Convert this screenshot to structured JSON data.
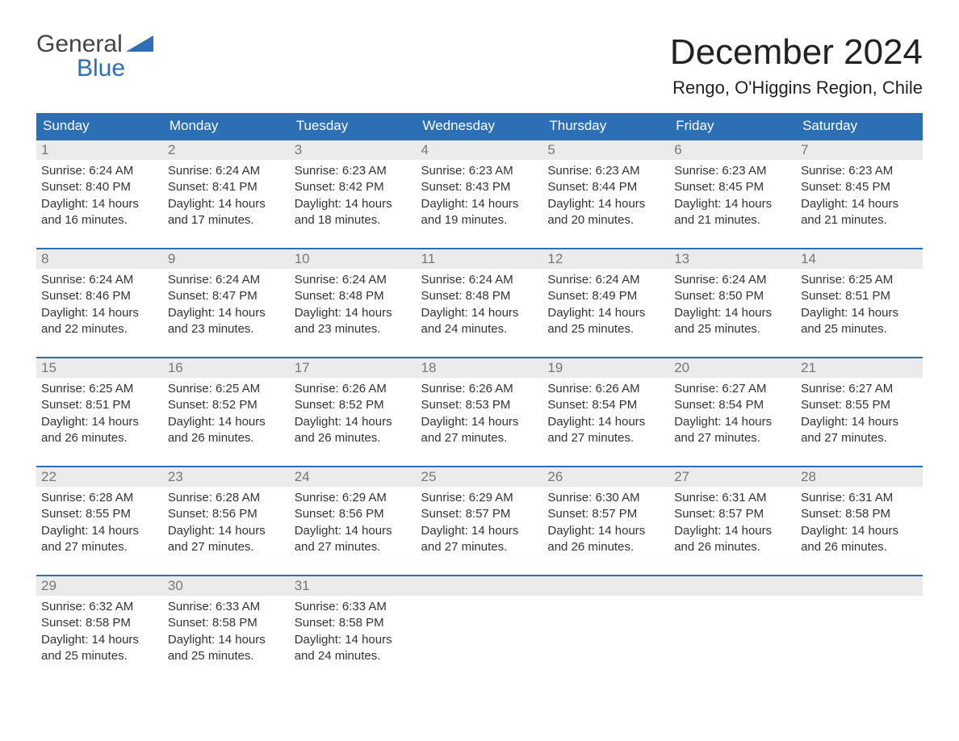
{
  "logo": {
    "general": "General",
    "blue": "Blue"
  },
  "title": "December 2024",
  "location": "Rengo, O'Higgins Region, Chile",
  "colors": {
    "header_bg": "#2d6fb4",
    "header_text": "#ffffff",
    "daynum_bg": "#ebebeb",
    "daynum_text": "#777777",
    "border": "#2d6fb4",
    "body_text": "#333333",
    "page_bg": "#ffffff"
  },
  "calendar": {
    "days_of_week": [
      "Sunday",
      "Monday",
      "Tuesday",
      "Wednesday",
      "Thursday",
      "Friday",
      "Saturday"
    ],
    "weeks": [
      [
        {
          "n": "1",
          "sunrise": "Sunrise: 6:24 AM",
          "sunset": "Sunset: 8:40 PM",
          "dl1": "Daylight: 14 hours",
          "dl2": "and 16 minutes."
        },
        {
          "n": "2",
          "sunrise": "Sunrise: 6:24 AM",
          "sunset": "Sunset: 8:41 PM",
          "dl1": "Daylight: 14 hours",
          "dl2": "and 17 minutes."
        },
        {
          "n": "3",
          "sunrise": "Sunrise: 6:23 AM",
          "sunset": "Sunset: 8:42 PM",
          "dl1": "Daylight: 14 hours",
          "dl2": "and 18 minutes."
        },
        {
          "n": "4",
          "sunrise": "Sunrise: 6:23 AM",
          "sunset": "Sunset: 8:43 PM",
          "dl1": "Daylight: 14 hours",
          "dl2": "and 19 minutes."
        },
        {
          "n": "5",
          "sunrise": "Sunrise: 6:23 AM",
          "sunset": "Sunset: 8:44 PM",
          "dl1": "Daylight: 14 hours",
          "dl2": "and 20 minutes."
        },
        {
          "n": "6",
          "sunrise": "Sunrise: 6:23 AM",
          "sunset": "Sunset: 8:45 PM",
          "dl1": "Daylight: 14 hours",
          "dl2": "and 21 minutes."
        },
        {
          "n": "7",
          "sunrise": "Sunrise: 6:23 AM",
          "sunset": "Sunset: 8:45 PM",
          "dl1": "Daylight: 14 hours",
          "dl2": "and 21 minutes."
        }
      ],
      [
        {
          "n": "8",
          "sunrise": "Sunrise: 6:24 AM",
          "sunset": "Sunset: 8:46 PM",
          "dl1": "Daylight: 14 hours",
          "dl2": "and 22 minutes."
        },
        {
          "n": "9",
          "sunrise": "Sunrise: 6:24 AM",
          "sunset": "Sunset: 8:47 PM",
          "dl1": "Daylight: 14 hours",
          "dl2": "and 23 minutes."
        },
        {
          "n": "10",
          "sunrise": "Sunrise: 6:24 AM",
          "sunset": "Sunset: 8:48 PM",
          "dl1": "Daylight: 14 hours",
          "dl2": "and 23 minutes."
        },
        {
          "n": "11",
          "sunrise": "Sunrise: 6:24 AM",
          "sunset": "Sunset: 8:48 PM",
          "dl1": "Daylight: 14 hours",
          "dl2": "and 24 minutes."
        },
        {
          "n": "12",
          "sunrise": "Sunrise: 6:24 AM",
          "sunset": "Sunset: 8:49 PM",
          "dl1": "Daylight: 14 hours",
          "dl2": "and 25 minutes."
        },
        {
          "n": "13",
          "sunrise": "Sunrise: 6:24 AM",
          "sunset": "Sunset: 8:50 PM",
          "dl1": "Daylight: 14 hours",
          "dl2": "and 25 minutes."
        },
        {
          "n": "14",
          "sunrise": "Sunrise: 6:25 AM",
          "sunset": "Sunset: 8:51 PM",
          "dl1": "Daylight: 14 hours",
          "dl2": "and 25 minutes."
        }
      ],
      [
        {
          "n": "15",
          "sunrise": "Sunrise: 6:25 AM",
          "sunset": "Sunset: 8:51 PM",
          "dl1": "Daylight: 14 hours",
          "dl2": "and 26 minutes."
        },
        {
          "n": "16",
          "sunrise": "Sunrise: 6:25 AM",
          "sunset": "Sunset: 8:52 PM",
          "dl1": "Daylight: 14 hours",
          "dl2": "and 26 minutes."
        },
        {
          "n": "17",
          "sunrise": "Sunrise: 6:26 AM",
          "sunset": "Sunset: 8:52 PM",
          "dl1": "Daylight: 14 hours",
          "dl2": "and 26 minutes."
        },
        {
          "n": "18",
          "sunrise": "Sunrise: 6:26 AM",
          "sunset": "Sunset: 8:53 PM",
          "dl1": "Daylight: 14 hours",
          "dl2": "and 27 minutes."
        },
        {
          "n": "19",
          "sunrise": "Sunrise: 6:26 AM",
          "sunset": "Sunset: 8:54 PM",
          "dl1": "Daylight: 14 hours",
          "dl2": "and 27 minutes."
        },
        {
          "n": "20",
          "sunrise": "Sunrise: 6:27 AM",
          "sunset": "Sunset: 8:54 PM",
          "dl1": "Daylight: 14 hours",
          "dl2": "and 27 minutes."
        },
        {
          "n": "21",
          "sunrise": "Sunrise: 6:27 AM",
          "sunset": "Sunset: 8:55 PM",
          "dl1": "Daylight: 14 hours",
          "dl2": "and 27 minutes."
        }
      ],
      [
        {
          "n": "22",
          "sunrise": "Sunrise: 6:28 AM",
          "sunset": "Sunset: 8:55 PM",
          "dl1": "Daylight: 14 hours",
          "dl2": "and 27 minutes."
        },
        {
          "n": "23",
          "sunrise": "Sunrise: 6:28 AM",
          "sunset": "Sunset: 8:56 PM",
          "dl1": "Daylight: 14 hours",
          "dl2": "and 27 minutes."
        },
        {
          "n": "24",
          "sunrise": "Sunrise: 6:29 AM",
          "sunset": "Sunset: 8:56 PM",
          "dl1": "Daylight: 14 hours",
          "dl2": "and 27 minutes."
        },
        {
          "n": "25",
          "sunrise": "Sunrise: 6:29 AM",
          "sunset": "Sunset: 8:57 PM",
          "dl1": "Daylight: 14 hours",
          "dl2": "and 27 minutes."
        },
        {
          "n": "26",
          "sunrise": "Sunrise: 6:30 AM",
          "sunset": "Sunset: 8:57 PM",
          "dl1": "Daylight: 14 hours",
          "dl2": "and 26 minutes."
        },
        {
          "n": "27",
          "sunrise": "Sunrise: 6:31 AM",
          "sunset": "Sunset: 8:57 PM",
          "dl1": "Daylight: 14 hours",
          "dl2": "and 26 minutes."
        },
        {
          "n": "28",
          "sunrise": "Sunrise: 6:31 AM",
          "sunset": "Sunset: 8:58 PM",
          "dl1": "Daylight: 14 hours",
          "dl2": "and 26 minutes."
        }
      ],
      [
        {
          "n": "29",
          "sunrise": "Sunrise: 6:32 AM",
          "sunset": "Sunset: 8:58 PM",
          "dl1": "Daylight: 14 hours",
          "dl2": "and 25 minutes."
        },
        {
          "n": "30",
          "sunrise": "Sunrise: 6:33 AM",
          "sunset": "Sunset: 8:58 PM",
          "dl1": "Daylight: 14 hours",
          "dl2": "and 25 minutes."
        },
        {
          "n": "31",
          "sunrise": "Sunrise: 6:33 AM",
          "sunset": "Sunset: 8:58 PM",
          "dl1": "Daylight: 14 hours",
          "dl2": "and 24 minutes."
        },
        {
          "empty": true
        },
        {
          "empty": true
        },
        {
          "empty": true
        },
        {
          "empty": true
        }
      ]
    ]
  }
}
